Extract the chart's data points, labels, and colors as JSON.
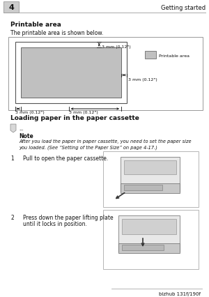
{
  "bg_color": "#ffffff",
  "page_num": "4",
  "header_text": "Getting started",
  "section1_title": "Printable area",
  "section1_sub": "The printable area is shown below.",
  "label_top": "3 mm (0.12\")",
  "label_right": "3 mm (0.12\")",
  "label_bottom_left": "3 mm (0.12\")",
  "label_bottom_right": "3 mm (0.12\")",
  "legend_label": "Printable area",
  "section2_title": "Loading paper in the paper cassette",
  "note_dots": "...",
  "note_title": "Note",
  "note_text_line1": "After you load the paper in paper cassette, you need to set the paper size",
  "note_text_line2": "you loaded. (See “Setting of the Paper Size” on page 4-17.)",
  "step1_num": "1",
  "step1_text": "Pull to open the paper cassette.",
  "step2_num": "2",
  "step2_text_line1": "Press down the paper lifting plate",
  "step2_text_line2": "until it locks in position.",
  "footer_text": "bizhub 131f/190f",
  "gray_fill": "#c0c0c0",
  "img_border": "#999999",
  "border_color": "#777777",
  "text_color": "#111111",
  "header_bar_color": "#cccccc",
  "line_color": "#aaaaaa"
}
